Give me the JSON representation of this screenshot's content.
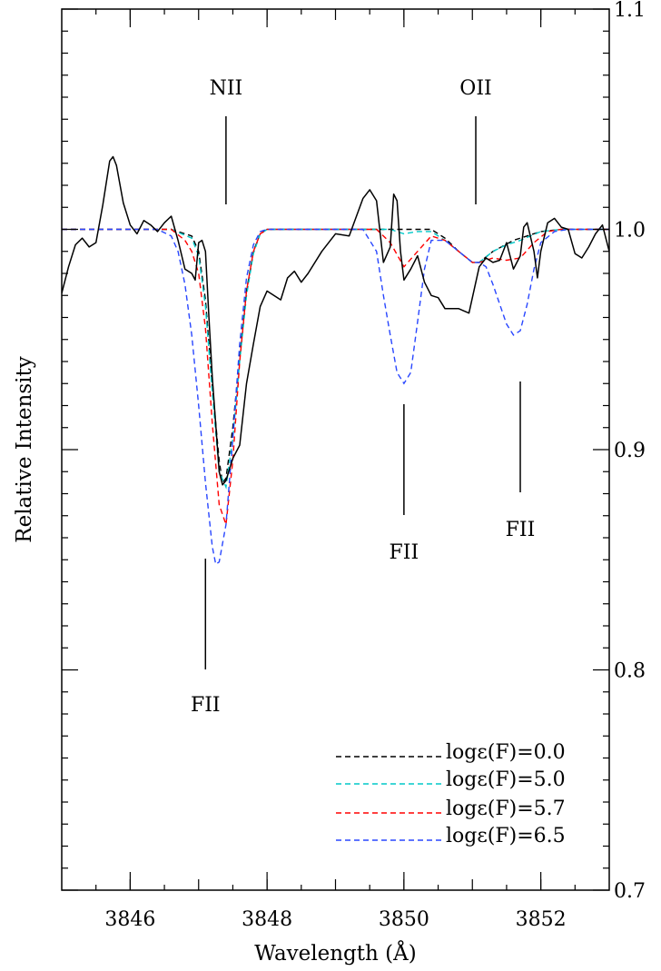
{
  "chart_data": {
    "type": "line",
    "xlabel": "Wavelength (Å)",
    "ylabel": "Relative Intensity",
    "xlim": [
      3845,
      3853
    ],
    "ylim": [
      0.7,
      1.1
    ],
    "x_ticks": [
      "3846",
      "3848",
      "3850",
      "3852"
    ],
    "y_ticks": [
      "0.7",
      "0.8",
      "0.9",
      "1.0",
      "1.1"
    ],
    "annotations": [
      {
        "label": "NII",
        "x": 3847.4,
        "position": "above"
      },
      {
        "label": "OII",
        "x": 3851.05,
        "position": "above"
      },
      {
        "label": "FII",
        "x": 3847.1,
        "position": "below"
      },
      {
        "label": "FII",
        "x": 3850.0,
        "position": "below"
      },
      {
        "label": "FII",
        "x": 3851.7,
        "position": "below"
      }
    ],
    "legend_position": "bottom-right",
    "observed": {
      "color": "#000000",
      "points": [
        [
          3845.0,
          0.971
        ],
        [
          3845.1,
          0.983
        ],
        [
          3845.2,
          0.993
        ],
        [
          3845.3,
          0.996
        ],
        [
          3845.4,
          0.992
        ],
        [
          3845.5,
          0.994
        ],
        [
          3845.6,
          1.011
        ],
        [
          3845.7,
          1.031
        ],
        [
          3845.75,
          1.033
        ],
        [
          3845.8,
          1.029
        ],
        [
          3845.9,
          1.012
        ],
        [
          3846.0,
          1.002
        ],
        [
          3846.1,
          0.998
        ],
        [
          3846.2,
          1.004
        ],
        [
          3846.3,
          1.002
        ],
        [
          3846.4,
          0.999
        ],
        [
          3846.5,
          1.003
        ],
        [
          3846.6,
          1.006
        ],
        [
          3846.7,
          0.995
        ],
        [
          3846.8,
          0.982
        ],
        [
          3846.9,
          0.98
        ],
        [
          3846.95,
          0.977
        ],
        [
          3847.0,
          0.994
        ],
        [
          3847.05,
          0.995
        ],
        [
          3847.1,
          0.99
        ],
        [
          3847.15,
          0.96
        ],
        [
          3847.2,
          0.933
        ],
        [
          3847.3,
          0.89
        ],
        [
          3847.35,
          0.884
        ],
        [
          3847.4,
          0.886
        ],
        [
          3847.5,
          0.896
        ],
        [
          3847.6,
          0.902
        ],
        [
          3847.7,
          0.93
        ],
        [
          3847.8,
          0.948
        ],
        [
          3847.9,
          0.965
        ],
        [
          3848.0,
          0.972
        ],
        [
          3848.2,
          0.968
        ],
        [
          3848.3,
          0.978
        ],
        [
          3848.4,
          0.981
        ],
        [
          3848.5,
          0.976
        ],
        [
          3848.6,
          0.98
        ],
        [
          3848.8,
          0.99
        ],
        [
          3849.0,
          0.998
        ],
        [
          3849.2,
          0.997
        ],
        [
          3849.4,
          1.014
        ],
        [
          3849.5,
          1.018
        ],
        [
          3849.6,
          1.013
        ],
        [
          3849.7,
          0.985
        ],
        [
          3849.8,
          0.992
        ],
        [
          3849.85,
          1.016
        ],
        [
          3849.9,
          1.013
        ],
        [
          3849.95,
          0.99
        ],
        [
          3850.0,
          0.977
        ],
        [
          3850.1,
          0.982
        ],
        [
          3850.2,
          0.988
        ],
        [
          3850.3,
          0.976
        ],
        [
          3850.4,
          0.97
        ],
        [
          3850.5,
          0.969
        ],
        [
          3850.6,
          0.964
        ],
        [
          3850.8,
          0.964
        ],
        [
          3850.95,
          0.962
        ],
        [
          3851.1,
          0.983
        ],
        [
          3851.2,
          0.987
        ],
        [
          3851.3,
          0.985
        ],
        [
          3851.4,
          0.986
        ],
        [
          3851.5,
          0.994
        ],
        [
          3851.6,
          0.982
        ],
        [
          3851.7,
          0.988
        ],
        [
          3851.75,
          1.001
        ],
        [
          3851.8,
          1.003
        ],
        [
          3851.9,
          0.99
        ],
        [
          3851.95,
          0.978
        ],
        [
          3852.0,
          0.99
        ],
        [
          3852.1,
          1.003
        ],
        [
          3852.2,
          1.005
        ],
        [
          3852.3,
          1.001
        ],
        [
          3852.4,
          1.0
        ],
        [
          3852.5,
          0.989
        ],
        [
          3852.6,
          0.987
        ],
        [
          3852.7,
          0.992
        ],
        [
          3852.8,
          0.998
        ],
        [
          3852.9,
          1.002
        ],
        [
          3853.0,
          0.99
        ]
      ]
    },
    "series": [
      {
        "name": "logε(F)=0.0",
        "color": "#000000",
        "points": [
          [
            3845.0,
            1.0
          ],
          [
            3846.6,
            1.0
          ],
          [
            3846.9,
            0.997
          ],
          [
            3847.0,
            0.99
          ],
          [
            3847.1,
            0.968
          ],
          [
            3847.2,
            0.929
          ],
          [
            3847.3,
            0.895
          ],
          [
            3847.35,
            0.885
          ],
          [
            3847.4,
            0.887
          ],
          [
            3847.5,
            0.91
          ],
          [
            3847.6,
            0.942
          ],
          [
            3847.7,
            0.972
          ],
          [
            3847.8,
            0.99
          ],
          [
            3847.9,
            0.998
          ],
          [
            3848.0,
            1.0
          ],
          [
            3850.4,
            1.0
          ],
          [
            3850.6,
            0.996
          ],
          [
            3850.8,
            0.99
          ],
          [
            3851.0,
            0.985
          ],
          [
            3851.1,
            0.985
          ],
          [
            3851.3,
            0.99
          ],
          [
            3851.6,
            0.995
          ],
          [
            3852.0,
            0.999
          ],
          [
            3852.3,
            1.0
          ],
          [
            3853.0,
            1.0
          ]
        ]
      },
      {
        "name": "logε(F)=5.0",
        "color": "#00c8c8",
        "points": [
          [
            3845.0,
            1.0
          ],
          [
            3846.6,
            1.0
          ],
          [
            3846.9,
            0.996
          ],
          [
            3847.0,
            0.988
          ],
          [
            3847.1,
            0.965
          ],
          [
            3847.2,
            0.926
          ],
          [
            3847.3,
            0.89
          ],
          [
            3847.4,
            0.883
          ],
          [
            3847.5,
            0.905
          ],
          [
            3847.6,
            0.94
          ],
          [
            3847.7,
            0.97
          ],
          [
            3847.8,
            0.989
          ],
          [
            3847.9,
            0.998
          ],
          [
            3848.0,
            1.0
          ],
          [
            3849.8,
            1.0
          ],
          [
            3850.0,
            0.998
          ],
          [
            3850.2,
            0.999
          ],
          [
            3850.4,
            0.999
          ],
          [
            3850.6,
            0.995
          ],
          [
            3850.8,
            0.99
          ],
          [
            3851.0,
            0.985
          ],
          [
            3851.1,
            0.985
          ],
          [
            3851.3,
            0.99
          ],
          [
            3851.5,
            0.993
          ],
          [
            3851.7,
            0.995
          ],
          [
            3852.0,
            0.999
          ],
          [
            3852.3,
            1.0
          ],
          [
            3853.0,
            1.0
          ]
        ]
      },
      {
        "name": "logε(F)=5.7",
        "color": "#ff0000",
        "points": [
          [
            3845.0,
            1.0
          ],
          [
            3846.6,
            1.0
          ],
          [
            3846.8,
            0.995
          ],
          [
            3846.9,
            0.99
          ],
          [
            3847.0,
            0.98
          ],
          [
            3847.1,
            0.955
          ],
          [
            3847.2,
            0.912
          ],
          [
            3847.3,
            0.875
          ],
          [
            3847.4,
            0.866
          ],
          [
            3847.5,
            0.895
          ],
          [
            3847.6,
            0.94
          ],
          [
            3847.7,
            0.972
          ],
          [
            3847.8,
            0.99
          ],
          [
            3847.9,
            0.998
          ],
          [
            3848.0,
            1.0
          ],
          [
            3849.6,
            1.0
          ],
          [
            3849.8,
            0.994
          ],
          [
            3850.0,
            0.983
          ],
          [
            3850.2,
            0.99
          ],
          [
            3850.4,
            0.997
          ],
          [
            3850.6,
            0.995
          ],
          [
            3850.8,
            0.99
          ],
          [
            3851.0,
            0.985
          ],
          [
            3851.1,
            0.985
          ],
          [
            3851.3,
            0.987
          ],
          [
            3851.5,
            0.986
          ],
          [
            3851.7,
            0.987
          ],
          [
            3851.9,
            0.994
          ],
          [
            3852.1,
            0.999
          ],
          [
            3852.3,
            1.0
          ],
          [
            3853.0,
            1.0
          ]
        ]
      },
      {
        "name": "logε(F)=6.5",
        "color": "#2846ff",
        "points": [
          [
            3845.0,
            1.0
          ],
          [
            3846.4,
            1.0
          ],
          [
            3846.6,
            0.997
          ],
          [
            3846.7,
            0.99
          ],
          [
            3846.8,
            0.975
          ],
          [
            3846.9,
            0.952
          ],
          [
            3847.0,
            0.92
          ],
          [
            3847.1,
            0.885
          ],
          [
            3847.2,
            0.856
          ],
          [
            3847.25,
            0.848
          ],
          [
            3847.3,
            0.849
          ],
          [
            3847.4,
            0.866
          ],
          [
            3847.5,
            0.905
          ],
          [
            3847.6,
            0.948
          ],
          [
            3847.7,
            0.978
          ],
          [
            3847.8,
            0.993
          ],
          [
            3847.9,
            0.999
          ],
          [
            3848.0,
            1.0
          ],
          [
            3849.4,
            1.0
          ],
          [
            3849.6,
            0.99
          ],
          [
            3849.7,
            0.97
          ],
          [
            3849.8,
            0.952
          ],
          [
            3849.9,
            0.935
          ],
          [
            3850.0,
            0.93
          ],
          [
            3850.1,
            0.935
          ],
          [
            3850.2,
            0.958
          ],
          [
            3850.3,
            0.982
          ],
          [
            3850.4,
            0.995
          ],
          [
            3850.6,
            0.995
          ],
          [
            3850.8,
            0.99
          ],
          [
            3851.0,
            0.985
          ],
          [
            3851.1,
            0.985
          ],
          [
            3851.2,
            0.983
          ],
          [
            3851.3,
            0.975
          ],
          [
            3851.4,
            0.966
          ],
          [
            3851.5,
            0.957
          ],
          [
            3851.6,
            0.952
          ],
          [
            3851.7,
            0.954
          ],
          [
            3851.8,
            0.966
          ],
          [
            3851.9,
            0.982
          ],
          [
            3852.0,
            0.994
          ],
          [
            3852.2,
            0.999
          ],
          [
            3852.4,
            1.0
          ],
          [
            3853.0,
            1.0
          ]
        ]
      }
    ]
  }
}
